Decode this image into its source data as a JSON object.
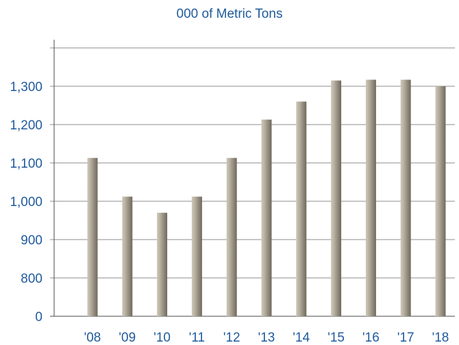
{
  "chart_data": {
    "type": "bar",
    "title": "000 of Metric Tons",
    "xlabel": "",
    "ylabel": "",
    "categories": [
      "'08",
      "'09",
      "'10",
      "'11",
      "'12",
      "'13",
      "'14",
      "'15",
      "'16",
      "'17",
      "'18"
    ],
    "values": [
      1113,
      1012,
      970,
      1012,
      1113,
      1213,
      1260,
      1315,
      1317,
      1317,
      1300
    ],
    "yticks": [
      0,
      800,
      900,
      1000,
      1100,
      1200,
      1300
    ],
    "ytick_labels": [
      "0",
      "800",
      "900",
      "1,000",
      "1,100",
      "1,200",
      "1,300"
    ],
    "ylim": [
      0,
      1400
    ],
    "axis_break": true,
    "grid": true,
    "legend": "none",
    "colors": {
      "bar_light": "#c9c3b5",
      "bar_mid": "#a49d8e",
      "bar_dark": "#6f695c",
      "text": "#1f5a9c",
      "grid": "#8c8c8c"
    }
  }
}
